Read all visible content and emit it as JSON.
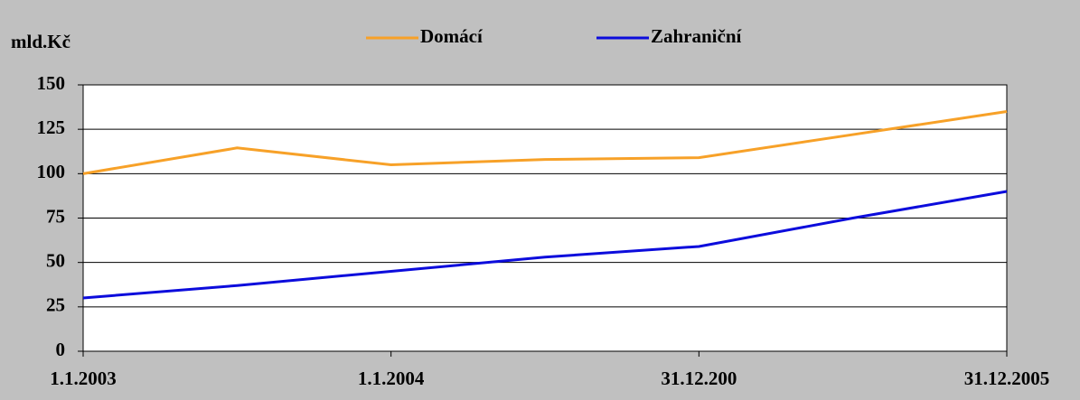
{
  "chart_data": {
    "type": "line",
    "y_label": "mld.Kč",
    "categories": [
      "1.1.2003",
      null,
      "1.1.2004",
      null,
      "31.12.200",
      null,
      "31.12.2005"
    ],
    "series": [
      {
        "name": "Domácí",
        "color": "#f7a128",
        "values": [
          100,
          114.5,
          105,
          108,
          109,
          122,
          135
        ]
      },
      {
        "name": "Zahraniční",
        "color": "#0c0cdc",
        "values": [
          30,
          37,
          45,
          53,
          59,
          75,
          90
        ]
      }
    ],
    "ylim": [
      0,
      150
    ],
    "yticks": [
      0,
      25,
      50,
      75,
      100,
      125,
      150
    ],
    "grid": true,
    "legend": "top"
  }
}
